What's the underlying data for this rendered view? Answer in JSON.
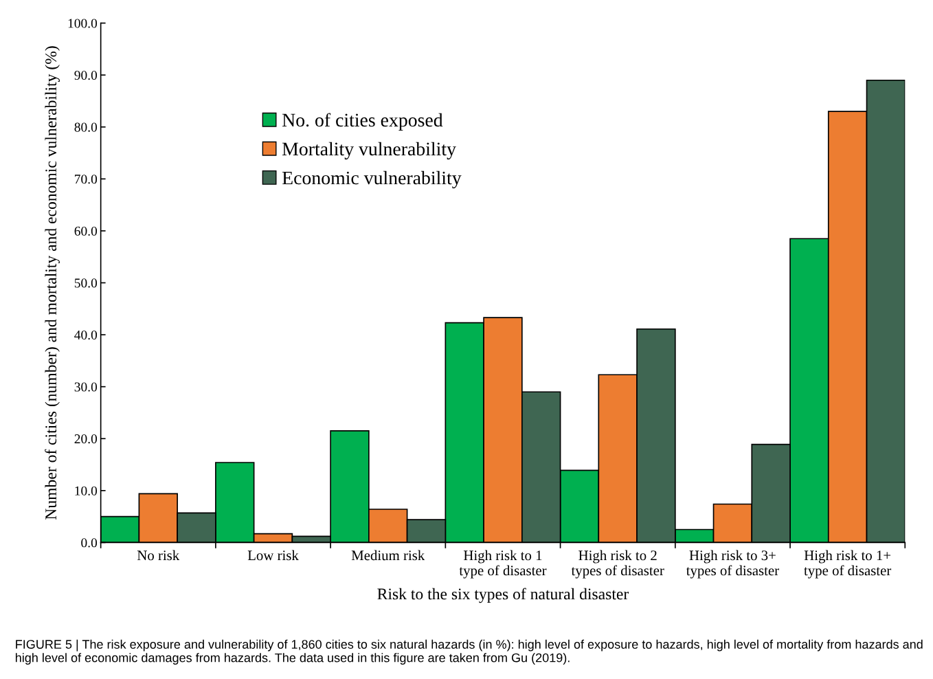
{
  "chart_data": {
    "type": "bar",
    "categories": [
      "No risk",
      "Low risk",
      "Medium risk",
      "High risk to 1\ntype of disaster",
      "High risk to 2\ntypes of disaster",
      "High risk to 3+\ntypes of disaster",
      "High risk to 1+\ntype of disaster"
    ],
    "series": [
      {
        "name": "No. of cities exposed",
        "color": "#00b050",
        "values": [
          5.0,
          15.4,
          21.5,
          42.3,
          13.9,
          2.5,
          58.5
        ]
      },
      {
        "name": "Mortality vulnerability",
        "color": "#ed7d31",
        "values": [
          9.4,
          1.7,
          6.4,
          43.3,
          32.3,
          7.4,
          83.0
        ]
      },
      {
        "name": "Economic vulnerability",
        "color": "#3f6652",
        "values": [
          5.7,
          1.2,
          4.4,
          29.0,
          41.1,
          18.9,
          89.0
        ]
      }
    ],
    "xlabel": "Risk to the six types of natural disaster",
    "ylabel": "Number of cities (number) and mortality and economic vulnerability (%)",
    "ylim": [
      0,
      100
    ],
    "yticks": [
      {
        "value": 0,
        "label": "0.0"
      },
      {
        "value": 10,
        "label": "10.0"
      },
      {
        "value": 20,
        "label": "20.0"
      },
      {
        "value": 30,
        "label": "30.0"
      },
      {
        "value": 40,
        "label": "40.0"
      },
      {
        "value": 50,
        "label": "50.0"
      },
      {
        "value": 60,
        "label": "60.0"
      },
      {
        "value": 70,
        "label": "70.0"
      },
      {
        "value": 80,
        "label": "80.0"
      },
      {
        "value": 90,
        "label": "90.0"
      },
      {
        "value": 100,
        "label": "100.0"
      }
    ],
    "grid": false,
    "legend": "top left",
    "annotations": [
      "FIGURE 5 | The risk exposure and vulnerability of 1,860 cities to six natural hazards (in %): high level of exposure to hazards, high level of mortality from hazards and high level of economic damages from hazards. The data used in this figure are taken from Gu (2019)."
    ]
  }
}
